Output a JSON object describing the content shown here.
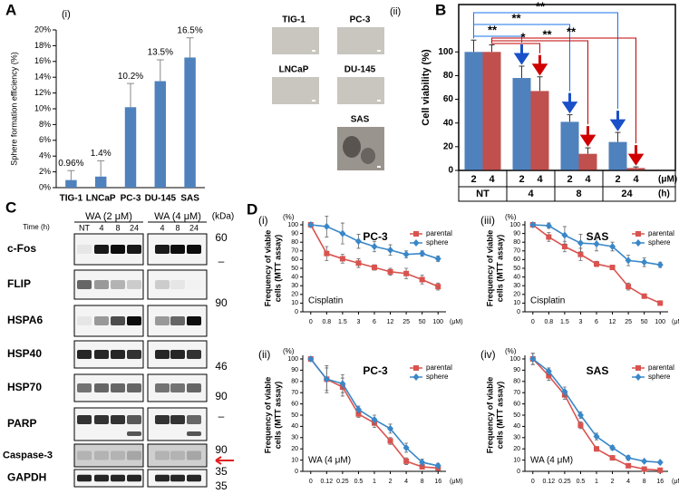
{
  "chart_data": [
    {
      "type": "bar",
      "panel": "A",
      "subpanel": "(i)",
      "ylabel": "Sphere formation efficiency (%)",
      "categories": [
        "TIG-1",
        "LNCaP",
        "PC-3",
        "DU-145",
        "SAS"
      ],
      "values": [
        0.96,
        1.4,
        10.2,
        13.5,
        16.5
      ],
      "value_labels": [
        "0.96%",
        "1.4%",
        "10.2%",
        "13.5%",
        "16.5%"
      ],
      "errors": [
        1.2,
        2,
        3,
        2.7,
        2.5
      ],
      "color": "#4f81bd",
      "ylim": [
        0,
        20
      ],
      "yticks": [
        {
          "value": 0,
          "label": "0%"
        },
        {
          "value": 2,
          "label": "2%"
        },
        {
          "value": 4,
          "label": "4%"
        },
        {
          "value": 6,
          "label": "6%"
        },
        {
          "value": 8,
          "label": "8%"
        },
        {
          "value": 10,
          "label": "10%"
        },
        {
          "value": 12,
          "label": "12%"
        },
        {
          "value": 14,
          "label": "14%"
        },
        {
          "value": 16,
          "label": "16%"
        },
        {
          "value": 18,
          "label": "18%"
        },
        {
          "value": 20,
          "label": "20%"
        }
      ]
    },
    {
      "type": "bar",
      "panel": "B",
      "ylabel": "Cell viability (%)",
      "categories": [
        "NT",
        "4",
        "8",
        "24"
      ],
      "series": [
        {
          "name": "2",
          "color": "#4f81bd",
          "values": [
            100,
            78,
            41,
            24
          ],
          "errors": [
            10,
            10,
            6,
            8
          ]
        },
        {
          "name": "4",
          "color": "#c0504d",
          "values": [
            100,
            67,
            14,
            2
          ],
          "errors": [
            6,
            12,
            5,
            1
          ]
        }
      ],
      "series_unit": "(μM)",
      "category_unit": "(h)",
      "ylim": [
        0,
        140
      ],
      "yticks": [
        0,
        20,
        40,
        60,
        80,
        100
      ],
      "annotations": [
        {
          "text": "**",
          "color": "#1a73e8"
        },
        {
          "text": "**",
          "color": "#1a73e8"
        },
        {
          "text": "**",
          "color": "#1a73e8"
        },
        {
          "text": "*",
          "color": "#c00000"
        },
        {
          "text": "**",
          "color": "#c00000"
        },
        {
          "text": "**",
          "color": "#c00000"
        }
      ]
    },
    {
      "type": "line",
      "panel": "D",
      "subpanel": "(i)",
      "title": "PC-3",
      "ylabel": [
        "Frequency of viable",
        "cells (MTT assay)"
      ],
      "yunit": "(%)",
      "xunit": "(μM)",
      "drug": "Cisplatin",
      "categories": [
        "0",
        "0.8",
        "1.5",
        "3",
        "6",
        "12",
        "25",
        "50",
        "100"
      ],
      "series": [
        {
          "name": "parental",
          "color": "#d9534f",
          "marker": "square",
          "values": [
            100,
            67,
            61,
            56,
            51,
            46,
            44,
            37,
            29
          ],
          "errors": [
            0,
            8,
            5,
            5,
            3,
            4,
            6,
            5,
            4
          ]
        },
        {
          "name": "sphere",
          "color": "#3a87c8",
          "marker": "diamond",
          "values": [
            100,
            98,
            90,
            81,
            75,
            71,
            66,
            67,
            61
          ],
          "errors": [
            0,
            12,
            12,
            8,
            6,
            6,
            4,
            3,
            3
          ]
        }
      ],
      "ylim": [
        0,
        100
      ],
      "yticks": [
        0,
        10,
        20,
        30,
        40,
        50,
        60,
        70,
        80,
        90,
        100
      ]
    },
    {
      "type": "line",
      "subpanel": "(ii)",
      "title": "PC-3",
      "ylabel": [
        "Frequency of viable",
        "cells (MTT assay)"
      ],
      "yunit": "(%)",
      "xunit": "(μM)",
      "drug": "WA (4 μM)",
      "categories": [
        "0",
        "0.12",
        "0.25",
        "0.5",
        "1",
        "2",
        "4",
        "8",
        "16"
      ],
      "series": [
        {
          "name": "parental",
          "color": "#d9534f",
          "marker": "square",
          "values": [
            100,
            82,
            75,
            51,
            43,
            27,
            9,
            4,
            3
          ],
          "errors": [
            0,
            10,
            8,
            3,
            4,
            3,
            3,
            2,
            1
          ]
        },
        {
          "name": "sphere",
          "color": "#3a87c8",
          "marker": "diamond",
          "values": [
            100,
            82,
            78,
            55,
            46,
            38,
            21,
            8,
            5
          ],
          "errors": [
            0,
            12,
            8,
            3,
            4,
            4,
            4,
            3,
            2
          ]
        }
      ],
      "ylim": [
        0,
        100
      ],
      "yticks": [
        0,
        10,
        20,
        30,
        40,
        50,
        60,
        70,
        80,
        90,
        100
      ]
    },
    {
      "type": "line",
      "subpanel": "(iii)",
      "title": "SAS",
      "ylabel": [
        "Frequency of viable",
        "cells (MTT assay)"
      ],
      "yunit": "(%)",
      "xunit": "(μM)",
      "drug": "Cisplatin",
      "categories": [
        "0",
        "0.8",
        "1.5",
        "3",
        "6",
        "12",
        "25",
        "50",
        "100"
      ],
      "series": [
        {
          "name": "parental",
          "color": "#d9534f",
          "marker": "square",
          "values": [
            100,
            86,
            75,
            66,
            55,
            51,
            29,
            18,
            10
          ],
          "errors": [
            0,
            5,
            6,
            7,
            3,
            2,
            4,
            2,
            1
          ]
        },
        {
          "name": "sphere",
          "color": "#3a87c8",
          "marker": "diamond",
          "values": [
            100,
            99,
            88,
            79,
            78,
            75,
            59,
            57,
            54
          ],
          "errors": [
            0,
            3,
            10,
            10,
            8,
            5,
            6,
            5,
            3
          ]
        }
      ],
      "ylim": [
        0,
        100
      ],
      "yticks": [
        0,
        10,
        20,
        30,
        40,
        50,
        60,
        70,
        80,
        90,
        100
      ]
    },
    {
      "type": "line",
      "subpanel": "(iv)",
      "title": "SAS",
      "ylabel": [
        "Frequency of viable",
        "cells (MTT assay)"
      ],
      "yunit": "(%)",
      "xunit": "(μM)",
      "drug": "WA (4 μM)",
      "categories": [
        "0",
        "0.12",
        "0.25",
        "0.5",
        "1",
        "2",
        "4",
        "8",
        "16"
      ],
      "series": [
        {
          "name": "parental",
          "color": "#d9534f",
          "marker": "square",
          "values": [
            100,
            85,
            68,
            41,
            20,
            12,
            5,
            2,
            1
          ],
          "errors": [
            5,
            4,
            4,
            3,
            2,
            2,
            1,
            1,
            1
          ]
        },
        {
          "name": "sphere",
          "color": "#3a87c8",
          "marker": "diamond",
          "values": [
            100,
            89,
            71,
            50,
            31,
            21,
            12,
            9,
            8
          ],
          "errors": [
            5,
            3,
            4,
            3,
            3,
            2,
            2,
            1,
            1
          ]
        }
      ],
      "ylim": [
        0,
        100
      ],
      "yticks": [
        0,
        10,
        20,
        30,
        40,
        50,
        60,
        70,
        80,
        90,
        100
      ]
    }
  ],
  "micrographs": {
    "subpanel": "(ii)",
    "labels": [
      "TIG-1",
      "PC-3",
      "LNCaP",
      "DU-145",
      "SAS"
    ]
  },
  "western_blot": {
    "panel": "C",
    "time_label": "Time (h)",
    "treatments": [
      "WA (2 μM)",
      "WA (4 μM)"
    ],
    "kda_label": "(kDa)",
    "lanes": [
      "NT",
      "4",
      "8",
      "24",
      "4",
      "8",
      "24"
    ],
    "proteins": [
      "c-Fos",
      "FLIP",
      "HSPA6",
      "HSP40",
      "HSP70",
      "PARP",
      "Caspase-3",
      "GAPDH"
    ],
    "markers": [
      "60",
      "–",
      "90",
      "46",
      "90",
      "–",
      "90",
      "35",
      "35"
    ]
  }
}
